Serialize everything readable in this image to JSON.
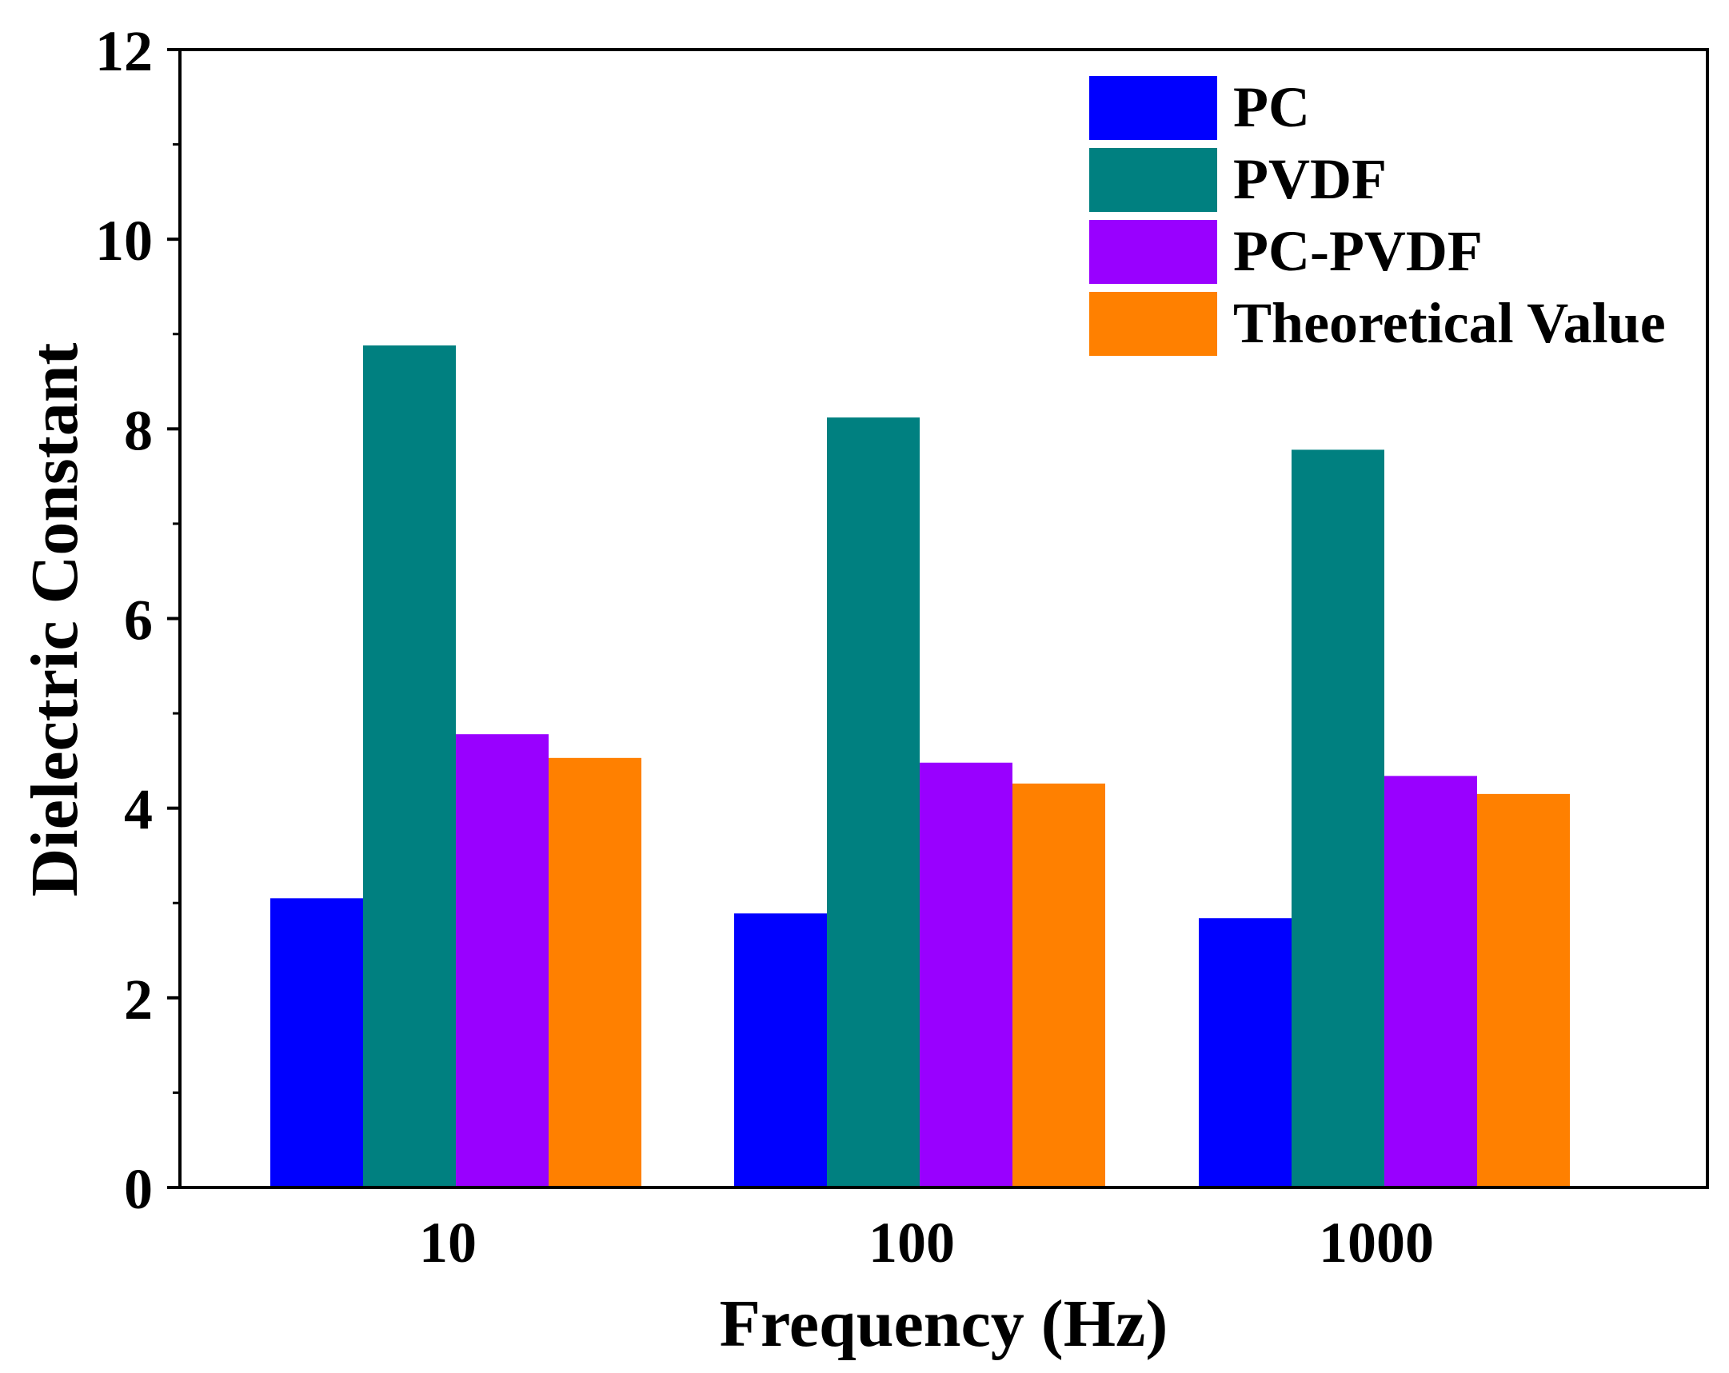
{
  "chart_data": {
    "type": "bar",
    "title": "",
    "xlabel": "Frequency (Hz)",
    "ylabel": "Dielectric Constant",
    "categories": [
      "10",
      "100",
      "1000"
    ],
    "ylim": [
      0,
      12
    ],
    "yticks": [
      "0",
      "2",
      "4",
      "6",
      "8",
      "10",
      "12"
    ],
    "ytick_values": [
      0,
      2,
      4,
      6,
      8,
      10,
      12
    ],
    "grid": false,
    "legend_position": "top-right",
    "series": [
      {
        "name": "PC",
        "color": "#0000ff",
        "values": [
          3.05,
          2.89,
          2.84
        ]
      },
      {
        "name": "PVDF",
        "color": "#008080",
        "values": [
          8.88,
          8.12,
          7.78
        ]
      },
      {
        "name": "PC-PVDF",
        "color": "#9900ff",
        "values": [
          4.78,
          4.48,
          4.34
        ]
      },
      {
        "name": "Theoretical Value",
        "color": "#ff8000",
        "values": [
          4.53,
          4.26,
          4.15
        ]
      }
    ]
  }
}
